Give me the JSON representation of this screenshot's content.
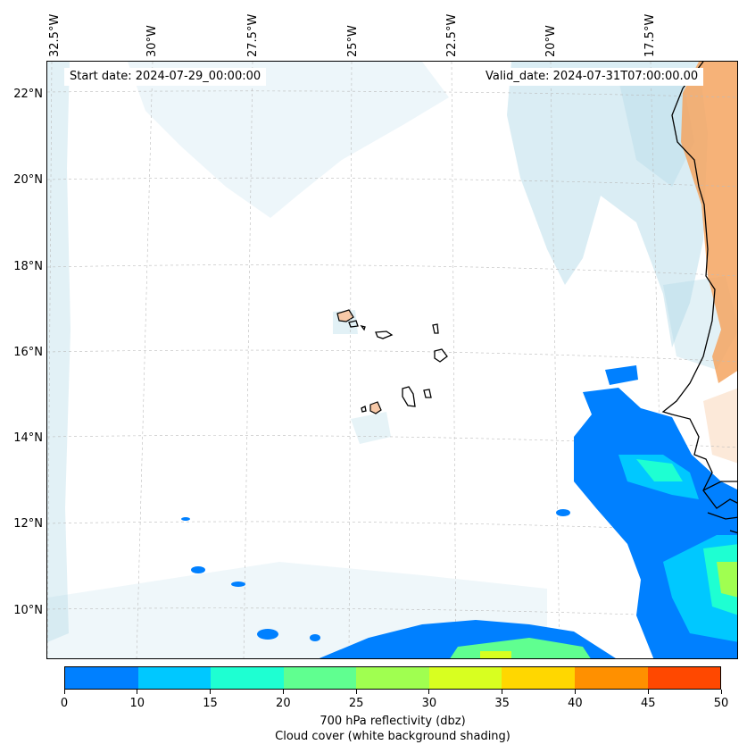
{
  "map": {
    "start_date_label": "Start date: 2024-07-29_00:00:00",
    "valid_date_label": "Valid_date: 2024-07-31T07:00:00.00",
    "longitude_labels": [
      "32.5°W",
      "30°W",
      "27.5°W",
      "25°W",
      "22.5°W",
      "20°W",
      "17.5°W"
    ],
    "latitude_labels": [
      "22°N",
      "20°N",
      "18°N",
      "16°N",
      "14°N",
      "12°N",
      "10°N"
    ],
    "extent": {
      "lon_min": -32.8,
      "lon_max": -15.6,
      "lat_min": 8.9,
      "lat_max": 22.8
    },
    "colors": {
      "cloud": "#add8e6",
      "land_warm": "#f4a460",
      "coastline": "#000000",
      "gridline": "#bbbbbb"
    }
  },
  "colorbar": {
    "ticks": [
      "0",
      "10",
      "15",
      "20",
      "25",
      "30",
      "35",
      "40",
      "45",
      "50"
    ],
    "colors": [
      "#0080ff",
      "#00c8ff",
      "#1effd2",
      "#60ff90",
      "#a0ff50",
      "#d8ff20",
      "#ffd700",
      "#ff9000",
      "#ff4800"
    ],
    "label_line1": "700 hPa reflectivity (dbz)",
    "label_line2": "Cloud cover (white background shading)"
  }
}
